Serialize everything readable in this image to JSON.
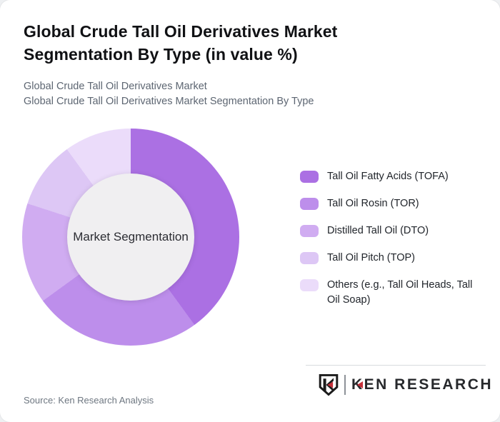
{
  "header": {
    "title": "Global Crude Tall Oil Derivatives Market Segmentation By Type (in value %)",
    "subtitle_line1": "Global Crude Tall Oil Derivatives Market",
    "subtitle_line2": "Global Crude Tall Oil Derivatives Market Segmentation By Type"
  },
  "chart_data": {
    "type": "pie",
    "variant": "donut",
    "title": "Global Crude Tall Oil Derivatives Market Segmentation By Type (in value %)",
    "center_label": "Market Segmentation",
    "categories": [
      "Tall Oil Fatty Acids (TOFA)",
      "Tall Oil Rosin (TOR)",
      "Distilled Tall Oil (DTO)",
      "Tall Oil Pitch (TOP)",
      "Others (e.g., Tall Oil Heads, Tall Oil Soap)"
    ],
    "values": [
      40,
      25,
      15,
      10,
      10
    ],
    "unit": "percent of value",
    "colors": [
      "#ab70e3",
      "#bd8eeb",
      "#d0acf1",
      "#ddc7f5",
      "#ebdcfa"
    ],
    "start_angle_deg": 0,
    "direction": "clockwise",
    "legend_position": "right",
    "hole_color": "#f0eff1"
  },
  "footer": {
    "source": "Source: Ken Research Analysis",
    "logo_text": "KEN RESEARCH",
    "logo_red": "#c5303a",
    "logo_dark": "#1b1b1b"
  }
}
